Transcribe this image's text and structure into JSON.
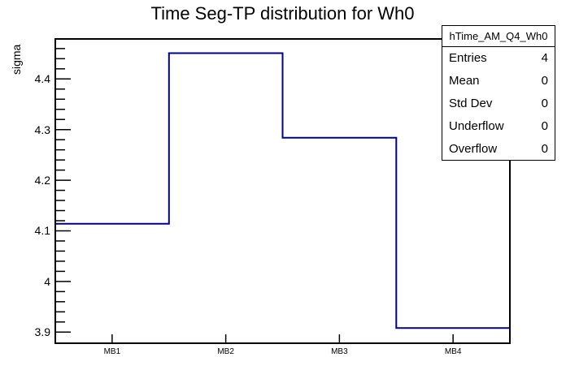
{
  "chart_data": {
    "type": "step-histogram",
    "title": "Time Seg-TP distribution for Wh0",
    "ylabel": "sigma",
    "xlabel": "",
    "categories": [
      "MB1",
      "MB2",
      "MB3",
      "MB4"
    ],
    "values": [
      4.114,
      4.451,
      4.284,
      3.908
    ],
    "ylim": [
      3.878,
      4.479
    ],
    "ytick_values": [
      4.4,
      4.3,
      4.2,
      4.1,
      4.0,
      3.9
    ],
    "ytick_labels": [
      "4.4",
      "4.3",
      "4.2",
      "4.1",
      "4",
      "3.9"
    ],
    "minor_tick_step": 0.02,
    "grid": false,
    "legend": "none",
    "line_color": "#00008B",
    "axis_color": "#000000",
    "background_color": "#ffffff"
  },
  "stats_box": {
    "header": "hTime_AM_Q4_Wh0",
    "rows": [
      {
        "label": "Entries",
        "value": "4"
      },
      {
        "label": "Mean",
        "value": "0"
      },
      {
        "label": "Std Dev",
        "value": "0"
      },
      {
        "label": "Underflow",
        "value": "0"
      },
      {
        "label": "Overflow",
        "value": "0"
      }
    ]
  }
}
